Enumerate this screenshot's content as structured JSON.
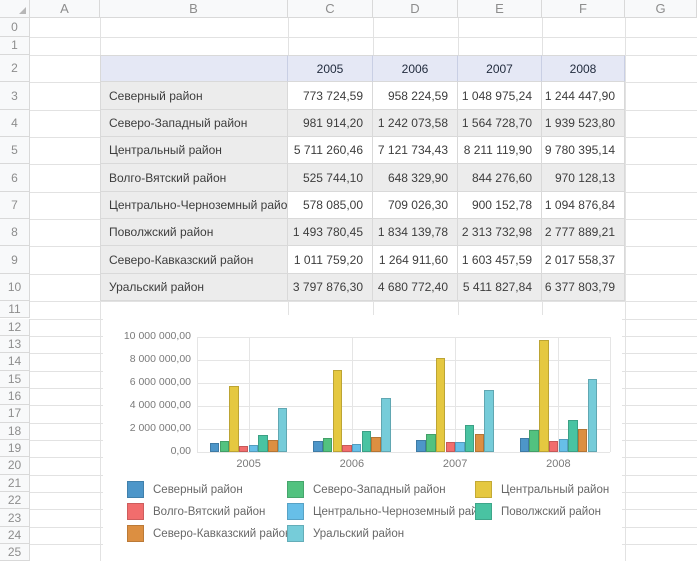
{
  "spreadsheet": {
    "column_headers": [
      "A",
      "B",
      "C",
      "D",
      "E",
      "F",
      "G"
    ],
    "row_numbers": [
      "0",
      "1",
      "2",
      "3",
      "4",
      "5",
      "6",
      "7",
      "8",
      "9",
      "10",
      "11",
      "12",
      "13",
      "14",
      "15",
      "16",
      "17",
      "18",
      "19",
      "20",
      "21",
      "22",
      "23",
      "24",
      "25"
    ]
  },
  "table": {
    "year_headers": [
      "2005",
      "2006",
      "2007",
      "2008"
    ],
    "rows": [
      {
        "name": "Северный район",
        "values": [
          "773 724,59",
          "958 224,59",
          "1 048 975,24",
          "1 244 447,90"
        ]
      },
      {
        "name": "Северо-Западный район",
        "values": [
          "981 914,20",
          "1 242 073,58",
          "1 564 728,70",
          "1 939 523,80"
        ]
      },
      {
        "name": "Центральный район",
        "values": [
          "5 711 260,46",
          "7 121 734,43",
          "8 211 119,90",
          "9 780 395,14"
        ]
      },
      {
        "name": "Волго-Вятский район",
        "values": [
          "525 744,10",
          "648 329,90",
          "844 276,60",
          "970 128,13"
        ]
      },
      {
        "name": "Центрально-Черноземный район",
        "values": [
          "578 085,00",
          "709 026,30",
          "900 152,78",
          "1 094 876,84"
        ]
      },
      {
        "name": "Поволжский район",
        "values": [
          "1 493 780,45",
          "1 834 139,78",
          "2 313 732,98",
          "2 777 889,21"
        ]
      },
      {
        "name": "Северо-Кавказский район",
        "values": [
          "1 011 759,20",
          "1 264 911,60",
          "1 603 457,59",
          "2 017 558,37"
        ]
      },
      {
        "name": "Уральский район",
        "values": [
          "3 797 876,30",
          "4 680 772,40",
          "5 411 827,84",
          "6 377 803,79"
        ]
      }
    ]
  },
  "chart_data": {
    "type": "bar",
    "categories": [
      "2005",
      "2006",
      "2007",
      "2008"
    ],
    "series": [
      {
        "name": "Северный район",
        "color": "#4d96c9",
        "values": [
          773724.59,
          958224.59,
          1048975.24,
          1244447.9
        ]
      },
      {
        "name": "Северо-Западный район",
        "color": "#52c27f",
        "values": [
          981914.2,
          1242073.58,
          1564728.7,
          1939523.8
        ]
      },
      {
        "name": "Центральный район",
        "color": "#e5c840",
        "values": [
          5711260.46,
          7121734.43,
          8211119.9,
          9780395.14
        ]
      },
      {
        "name": "Волго-Вятский район",
        "color": "#f16d6d",
        "values": [
          525744.1,
          648329.9,
          844276.6,
          970128.13
        ]
      },
      {
        "name": "Центрально-Черноземный район",
        "color": "#67bfe8",
        "values": [
          578085.0,
          709026.3,
          900152.78,
          1094876.84
        ]
      },
      {
        "name": "Поволжский район",
        "color": "#49c3a2",
        "values": [
          1493780.45,
          1834139.78,
          2313732.98,
          2777889.21
        ]
      },
      {
        "name": "Северо-Кавказский район",
        "color": "#dc8f41",
        "values": [
          1011759.2,
          1264911.6,
          1603457.59,
          2017558.37
        ]
      },
      {
        "name": "Уральский район",
        "color": "#76ccd9",
        "values": [
          3797876.3,
          4680772.4,
          5411827.84,
          6377803.79
        ]
      }
    ],
    "yticklabels": [
      "0,00",
      "2 000 000,00",
      "4 000 000,00",
      "6 000 000,00",
      "8 000 000,00",
      "10 000 000,00"
    ],
    "ylim": [
      0,
      10000000
    ],
    "grid": true,
    "legend_position": "bottom",
    "title": "",
    "xlabel": "",
    "ylabel": ""
  },
  "icons": {
    "select_all": "corner-triangle"
  },
  "colors": {
    "table_header_bg": "#e5e8f5",
    "table_band_bg": "#ececec",
    "gridline": "#e2e2e2"
  }
}
